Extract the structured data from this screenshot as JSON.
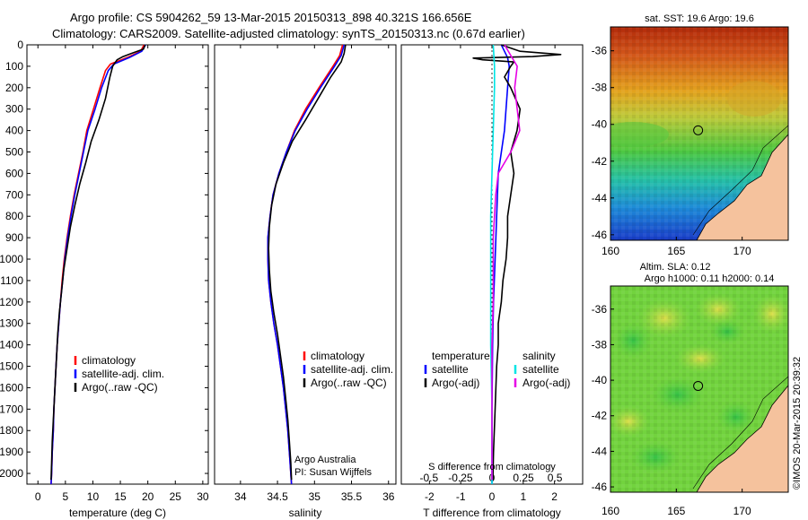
{
  "header": {
    "line1": "Argo profile: CS 5904262_59 13-Mar-2015 20150313_898 40.321S 166.656E",
    "line2": "Climatology: CARS2009. Satellite-adjusted climatology: synTS_20150313.nc (0.67d earlier)"
  },
  "colors": {
    "climatology": "#ff0000",
    "satellite": "#0000ff",
    "argo": "#000000",
    "s_satellite": "#00e5e5",
    "s_argo": "#e600e6",
    "land": "#f5c29d"
  },
  "chart_data": [
    {
      "type": "line",
      "id": "temperature",
      "xlabel": "temperature (deg C)",
      "xticks": [
        "0",
        "5",
        "10",
        "15",
        "20",
        "25",
        "30"
      ],
      "xlim": [
        -2,
        31
      ],
      "ylim": [
        0,
        2050
      ],
      "yticks": [
        "0",
        "100",
        "200",
        "300",
        "400",
        "500",
        "600",
        "700",
        "800",
        "900",
        "1000",
        "1100",
        "1200",
        "1300",
        "1400",
        "1500",
        "1600",
        "1700",
        "1800",
        "1900",
        "2000"
      ],
      "y_inverted": true,
      "legend": [
        "climatology",
        "satellite-adj. clim.",
        "Argo(..raw -QC)"
      ],
      "series": [
        {
          "name": "climatology",
          "color": "#ff0000",
          "depth": [
            0,
            30,
            60,
            90,
            120,
            200,
            300,
            400,
            500,
            600,
            700,
            800,
            900,
            1000,
            1100,
            1200,
            1300,
            1400,
            1500,
            1600,
            1700,
            1800,
            1900,
            2000,
            2050
          ],
          "values": [
            19.3,
            18.7,
            16.2,
            13.2,
            12.3,
            11.3,
            10.1,
            8.9,
            8.2,
            7.4,
            6.6,
            5.9,
            5.3,
            4.8,
            4.4,
            4.1,
            3.8,
            3.5,
            3.3,
            3.1,
            2.9,
            2.8,
            2.6,
            2.5,
            2.4
          ]
        },
        {
          "name": "satellite-adj. clim.",
          "color": "#0000ff",
          "depth": [
            0,
            30,
            60,
            90,
            120,
            200,
            300,
            400,
            500,
            600,
            700,
            800,
            900,
            1000,
            1100,
            1200,
            1300,
            1400,
            1500,
            1600,
            1700,
            1800,
            1900,
            2000,
            2050
          ],
          "values": [
            19.6,
            18.9,
            16.6,
            13.8,
            12.8,
            11.6,
            10.4,
            9.1,
            8.3,
            7.5,
            6.7,
            6.0,
            5.4,
            4.9,
            4.5,
            4.1,
            3.8,
            3.5,
            3.3,
            3.1,
            2.9,
            2.8,
            2.6,
            2.5,
            2.4
          ]
        },
        {
          "name": "Argo(..raw -QC)",
          "color": "#000000",
          "depth": [
            0,
            20,
            40,
            55,
            70,
            100,
            150,
            250,
            350,
            450,
            550,
            650,
            750,
            850,
            950,
            1050,
            1150,
            1250,
            1350,
            1450,
            1550,
            1650,
            1750,
            1850,
            1950,
            2030
          ],
          "values": [
            19.5,
            19.2,
            17.0,
            15.5,
            14.4,
            13.6,
            13.1,
            12.3,
            11.1,
            9.7,
            8.7,
            7.6,
            6.7,
            5.9,
            5.3,
            4.7,
            4.3,
            3.9,
            3.6,
            3.4,
            3.2,
            3.0,
            2.8,
            2.6,
            2.5,
            2.4
          ]
        }
      ]
    },
    {
      "type": "line",
      "id": "salinity",
      "xlabel": "salinity",
      "xticks": [
        "34",
        "34.5",
        "35",
        "35.5",
        "36"
      ],
      "xlim": [
        33.65,
        36.1
      ],
      "ylim": [
        0,
        2050
      ],
      "y_inverted": true,
      "legend": [
        "climatology",
        "satellite-adj. clim.",
        "Argo(..raw -QC)"
      ],
      "annotation": [
        "Argo Australia",
        "PI: Susan Wijffels"
      ],
      "series": [
        {
          "name": "climatology",
          "color": "#ff0000",
          "depth": [
            0,
            50,
            100,
            200,
            300,
            400,
            500,
            600,
            700,
            800,
            900,
            1000,
            1100,
            1200,
            1300,
            1400,
            1500,
            1600,
            1700,
            1800,
            1900,
            2000,
            2050
          ],
          "values": [
            35.38,
            35.34,
            35.25,
            35.06,
            34.88,
            34.73,
            34.62,
            34.52,
            34.44,
            34.4,
            34.37,
            34.37,
            34.38,
            34.41,
            34.45,
            34.5,
            34.54,
            34.58,
            34.61,
            34.64,
            34.66,
            34.68,
            34.69
          ]
        },
        {
          "name": "satellite-adj. clim.",
          "color": "#0000ff",
          "depth": [
            0,
            50,
            100,
            200,
            300,
            400,
            500,
            600,
            700,
            800,
            900,
            1000,
            1100,
            1200,
            1300,
            1400,
            1500,
            1600,
            1700,
            1800,
            1900,
            2000,
            2050
          ],
          "values": [
            35.4,
            35.36,
            35.27,
            35.08,
            34.9,
            34.74,
            34.62,
            34.52,
            34.44,
            34.4,
            34.37,
            34.37,
            34.38,
            34.41,
            34.45,
            34.5,
            34.54,
            34.58,
            34.61,
            34.64,
            34.66,
            34.68,
            34.69
          ]
        },
        {
          "name": "Argo(..raw -QC)",
          "color": "#000000",
          "depth": [
            0,
            40,
            80,
            150,
            250,
            350,
            450,
            550,
            650,
            750,
            850,
            950,
            1050,
            1150,
            1250,
            1350,
            1450,
            1550,
            1650,
            1750,
            1850,
            1950,
            2030
          ],
          "values": [
            35.42,
            35.4,
            35.36,
            35.22,
            35.05,
            34.88,
            34.7,
            34.58,
            34.48,
            34.42,
            34.39,
            34.38,
            34.39,
            34.41,
            34.45,
            34.5,
            34.54,
            34.58,
            34.61,
            34.64,
            34.66,
            34.68,
            34.69
          ]
        }
      ]
    },
    {
      "type": "line",
      "id": "differences",
      "ylim": [
        0,
        2050
      ],
      "y_inverted": true,
      "xlabel_top": "S difference from climatology",
      "xlabel": "T difference from climatology",
      "s_ticks": [
        "-0.5",
        "-0.25",
        "0",
        "0.25",
        "0.5"
      ],
      "s_xlim": [
        -0.72,
        0.72
      ],
      "t_ticks": [
        "-2",
        "-1",
        "0",
        "1",
        "2"
      ],
      "t_xlim": [
        -2.9,
        2.9
      ],
      "legend_temperature": {
        "title": "temperature",
        "items": [
          "satellite",
          "Argo(-adj)"
        ]
      },
      "legend_salinity": {
        "title": "salinity",
        "items": [
          "satellite",
          "Argo(-adj)"
        ]
      },
      "series": [
        {
          "name": "T satellite",
          "color": "#0000ff",
          "axis": "T",
          "depth": [
            0,
            30,
            60,
            100,
            200,
            400,
            600,
            800,
            1000,
            1200,
            1400,
            1700,
            2050
          ],
          "values": [
            0.3,
            0.4,
            0.5,
            0.55,
            0.5,
            0.4,
            0.2,
            0.15,
            0.1,
            0.05,
            0.02,
            0.0,
            0.0
          ]
        },
        {
          "name": "T Argo(-adj)",
          "color": "#000000",
          "axis": "T",
          "depth": [
            0,
            30,
            45,
            55,
            62,
            70,
            80,
            100,
            150,
            200,
            300,
            400,
            500,
            600,
            700,
            800,
            900,
            1000,
            1100,
            1200,
            1300,
            1400,
            1500,
            1700,
            1900,
            2030
          ],
          "values": [
            0.3,
            0.9,
            2.2,
            1.3,
            -0.6,
            -0.3,
            0.7,
            0.6,
            0.4,
            0.6,
            0.9,
            0.8,
            0.6,
            0.7,
            0.6,
            0.5,
            0.5,
            0.45,
            0.35,
            0.3,
            0.2,
            0.2,
            0.15,
            0.1,
            0.05,
            0.03
          ]
        },
        {
          "name": "S satellite",
          "color": "#00e5e5",
          "axis": "S",
          "depth": [
            0,
            100,
            200,
            400,
            600,
            800,
            1000,
            1200,
            1400,
            1700,
            2050
          ],
          "values": [
            0.01,
            0.02,
            0.02,
            0.01,
            0.0,
            -0.01,
            -0.01,
            -0.01,
            -0.01,
            0.0,
            0.0
          ]
        },
        {
          "name": "S Argo(-adj)",
          "color": "#e600e6",
          "axis": "S",
          "depth": [
            0,
            50,
            100,
            200,
            300,
            400,
            500,
            600,
            700,
            800,
            900,
            1000,
            1200,
            1400,
            1700,
            2030
          ],
          "values": [
            0.1,
            0.15,
            0.2,
            0.18,
            0.2,
            0.22,
            0.15,
            0.05,
            0.03,
            0.02,
            0.01,
            0.01,
            0.01,
            0.0,
            0.0,
            0.0
          ]
        }
      ]
    },
    {
      "type": "heatmap",
      "id": "sst-map",
      "title": "sat. SST: 19.6 Argo: 19.6",
      "xticks": [
        "160",
        "165",
        "170"
      ],
      "yticks": [
        "-36",
        "-38",
        "-40",
        "-42",
        "-44",
        "-46"
      ],
      "xlim": [
        160,
        173.5
      ],
      "ylim": [
        -46.3,
        -34.7
      ],
      "argo_position": {
        "lon": 166.656,
        "lat": -40.321
      }
    },
    {
      "type": "heatmap",
      "id": "sla-map",
      "title_lines": [
        "Altim. SLA: 0.12",
        "Argo h1000: 0.11 h2000: 0.14"
      ],
      "xticks": [
        "160",
        "165",
        "170"
      ],
      "yticks": [
        "-36",
        "-38",
        "-40",
        "-42",
        "-44",
        "-46"
      ],
      "xlim": [
        160,
        173.5
      ],
      "ylim": [
        -46.3,
        -34.7
      ],
      "argo_position": {
        "lon": 166.656,
        "lat": -40.321
      }
    }
  ],
  "credit": "©IMOS 20-Mar-2015 20:39:32"
}
